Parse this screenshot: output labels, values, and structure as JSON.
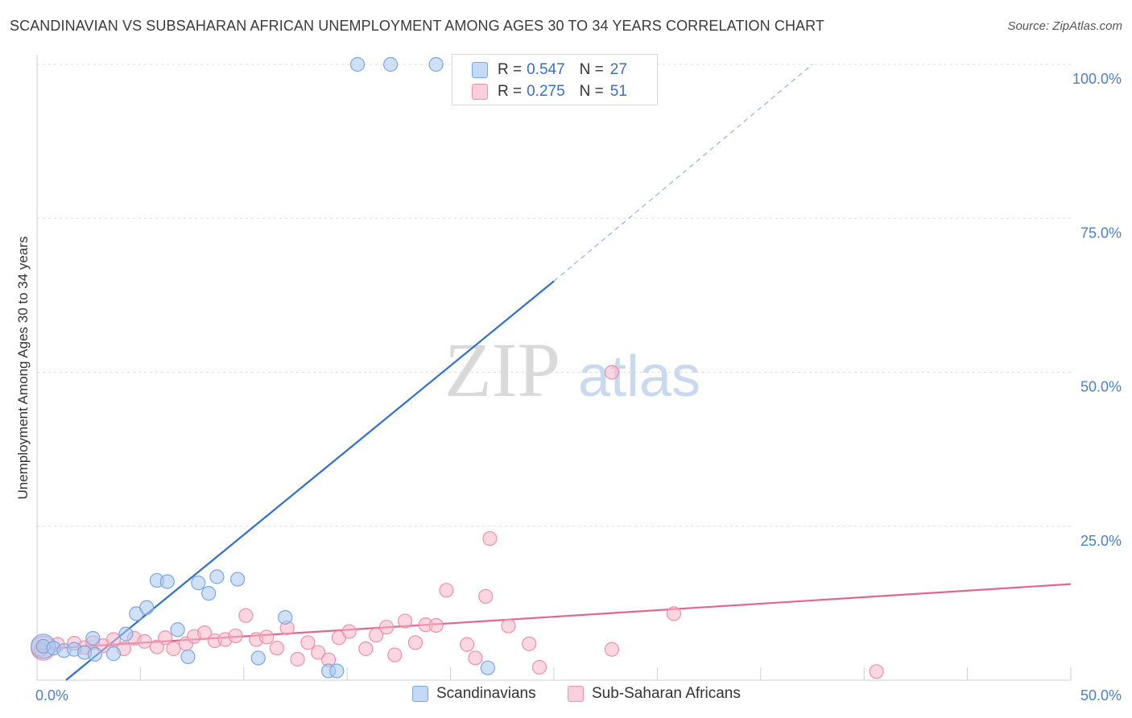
{
  "title": "SCANDINAVIAN VS SUBSAHARAN AFRICAN UNEMPLOYMENT AMONG AGES 30 TO 34 YEARS CORRELATION CHART",
  "source": "Source: ZipAtlas.com",
  "watermark": {
    "zip": "ZIP",
    "atlas": "atlas"
  },
  "legend": {
    "rows": [
      {
        "r_label": "R =",
        "r_value": "0.547",
        "n_label": "N =",
        "n_value": "27"
      },
      {
        "r_label": "R =",
        "r_value": "0.275",
        "n_label": "N =",
        "n_value": "51"
      }
    ]
  },
  "bottom_legend": {
    "s1": "Scandinavians",
    "s2": "Sub-Saharan Africans"
  },
  "colors": {
    "blue_fill": "#aac8f0",
    "blue_stroke": "#7aa6e0",
    "blue_line": "#2e6fd0",
    "pink_fill": "#f7b6c8",
    "pink_stroke": "#ee90ac",
    "pink_line": "#e0678f",
    "tick": "#4a7fc9"
  },
  "chart_data": {
    "type": "scatter",
    "title": "SCANDINAVIAN VS SUBSAHARAN AFRICAN UNEMPLOYMENT AMONG AGES 30 TO 34 YEARS CORRELATION CHART",
    "xlabel": "",
    "ylabel": "Unemployment Among Ages 30 to 34 years",
    "xlim": [
      0,
      50
    ],
    "ylim": [
      0,
      100
    ],
    "x_ticks": [
      {
        "value": 0,
        "label": "0.0%"
      },
      {
        "value": 50,
        "label": "50.0%"
      }
    ],
    "x_minor_ticks": [
      5,
      10,
      15,
      20,
      25,
      30,
      35,
      40,
      45,
      50
    ],
    "y_ticks": [
      {
        "value": 25,
        "label": "25.0%"
      },
      {
        "value": 50,
        "label": "50.0%"
      },
      {
        "value": 75,
        "label": "75.0%"
      },
      {
        "value": 100,
        "label": "100.0%"
      }
    ],
    "series": [
      {
        "name": "Scandinavians",
        "R": 0.547,
        "N": 27,
        "trend": {
          "x0": 1.4,
          "y0": 0,
          "x1": 25.0,
          "y1": 64.8,
          "dash_x1": 37.5,
          "dash_y1": 100
        },
        "points": [
          [
            0.3,
            5.5
          ],
          [
            0.8,
            5.2
          ],
          [
            1.3,
            4.8
          ],
          [
            1.8,
            5.0
          ],
          [
            2.3,
            4.5
          ],
          [
            2.7,
            6.8
          ],
          [
            2.8,
            4.2
          ],
          [
            3.7,
            4.3
          ],
          [
            4.3,
            7.5
          ],
          [
            4.8,
            10.8
          ],
          [
            5.3,
            11.8
          ],
          [
            5.8,
            16.2
          ],
          [
            6.3,
            16.0
          ],
          [
            6.8,
            8.2
          ],
          [
            7.3,
            3.8
          ],
          [
            7.8,
            15.8
          ],
          [
            8.3,
            14.1
          ],
          [
            8.7,
            16.8
          ],
          [
            9.7,
            16.4
          ],
          [
            10.7,
            3.6
          ],
          [
            12.0,
            10.2
          ],
          [
            14.1,
            1.5
          ],
          [
            14.5,
            1.5
          ],
          [
            15.5,
            100
          ],
          [
            17.1,
            100
          ],
          [
            19.3,
            100
          ],
          [
            21.8,
            2.0
          ]
        ],
        "big_point": [
          0.3,
          5.5
        ]
      },
      {
        "name": "Sub-Saharan Africans",
        "R": 0.275,
        "N": 51,
        "trend": {
          "x0": 0,
          "y0": 5.0,
          "x1": 50,
          "y1": 15.6
        },
        "points": [
          [
            0.2,
            5.0
          ],
          [
            1.0,
            5.8
          ],
          [
            1.8,
            6.0
          ],
          [
            2.3,
            5.3
          ],
          [
            2.7,
            6.1
          ],
          [
            3.2,
            5.6
          ],
          [
            3.7,
            6.6
          ],
          [
            4.2,
            5.1
          ],
          [
            4.7,
            6.8
          ],
          [
            5.2,
            6.3
          ],
          [
            5.8,
            5.4
          ],
          [
            6.2,
            6.9
          ],
          [
            6.6,
            5.1
          ],
          [
            7.2,
            5.9
          ],
          [
            7.6,
            7.1
          ],
          [
            8.1,
            7.7
          ],
          [
            8.6,
            6.4
          ],
          [
            9.1,
            6.6
          ],
          [
            9.6,
            7.2
          ],
          [
            10.1,
            10.5
          ],
          [
            10.6,
            6.6
          ],
          [
            11.1,
            7.0
          ],
          [
            11.6,
            5.2
          ],
          [
            12.1,
            8.5
          ],
          [
            12.6,
            3.4
          ],
          [
            13.1,
            6.1
          ],
          [
            13.6,
            4.5
          ],
          [
            14.1,
            3.3
          ],
          [
            14.6,
            6.9
          ],
          [
            15.1,
            7.9
          ],
          [
            15.9,
            5.1
          ],
          [
            16.4,
            7.3
          ],
          [
            16.9,
            8.6
          ],
          [
            17.3,
            4.1
          ],
          [
            17.8,
            9.6
          ],
          [
            18.3,
            6.1
          ],
          [
            18.8,
            9.0
          ],
          [
            19.3,
            8.9
          ],
          [
            19.8,
            14.6
          ],
          [
            20.8,
            5.8
          ],
          [
            21.2,
            3.6
          ],
          [
            21.7,
            13.6
          ],
          [
            21.9,
            23.0
          ],
          [
            22.8,
            8.8
          ],
          [
            23.8,
            5.9
          ],
          [
            24.3,
            2.1
          ],
          [
            27.8,
            5.0
          ],
          [
            27.8,
            50.0
          ],
          [
            30.8,
            10.8
          ],
          [
            40.6,
            1.4
          ]
        ],
        "big_point": [
          0.3,
          5.2
        ]
      }
    ]
  }
}
